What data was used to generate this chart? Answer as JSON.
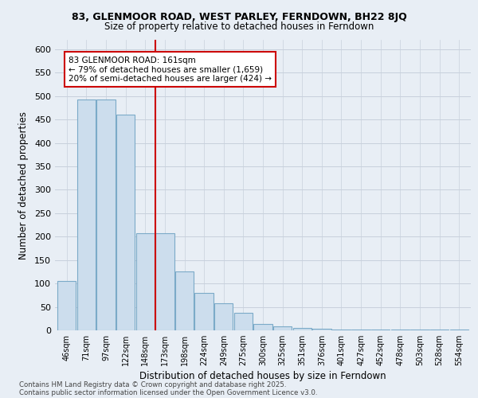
{
  "title1": "83, GLENMOOR ROAD, WEST PARLEY, FERNDOWN, BH22 8JQ",
  "title2": "Size of property relative to detached houses in Ferndown",
  "xlabel": "Distribution of detached houses by size in Ferndown",
  "ylabel": "Number of detached properties",
  "annotation_title": "83 GLENMOOR ROAD: 161sqm",
  "annotation_line1": "← 79% of detached houses are smaller (1,659)",
  "annotation_line2": "20% of semi-detached houses are larger (424) →",
  "categories": [
    "46sqm",
    "71sqm",
    "97sqm",
    "122sqm",
    "148sqm",
    "173sqm",
    "198sqm",
    "224sqm",
    "249sqm",
    "275sqm",
    "300sqm",
    "325sqm",
    "351sqm",
    "376sqm",
    "401sqm",
    "427sqm",
    "452sqm",
    "478sqm",
    "503sqm",
    "528sqm",
    "554sqm"
  ],
  "values": [
    105,
    492,
    492,
    460,
    207,
    207,
    125,
    80,
    58,
    38,
    13,
    8,
    5,
    3,
    2,
    2,
    1,
    1,
    1,
    1,
    1
  ],
  "bar_color": "#ccdded",
  "bar_edge_color": "#7baac8",
  "vline_color": "#cc0000",
  "vline_x": 4.5,
  "annotation_box_color": "#cc0000",
  "background_color": "#e8eef5",
  "grid_color": "#c8d0dc",
  "footnote1": "Contains HM Land Registry data © Crown copyright and database right 2025.",
  "footnote2": "Contains public sector information licensed under the Open Government Licence v3.0.",
  "ylim": [
    0,
    620
  ],
  "yticks": [
    0,
    50,
    100,
    150,
    200,
    250,
    300,
    350,
    400,
    450,
    500,
    550,
    600
  ]
}
